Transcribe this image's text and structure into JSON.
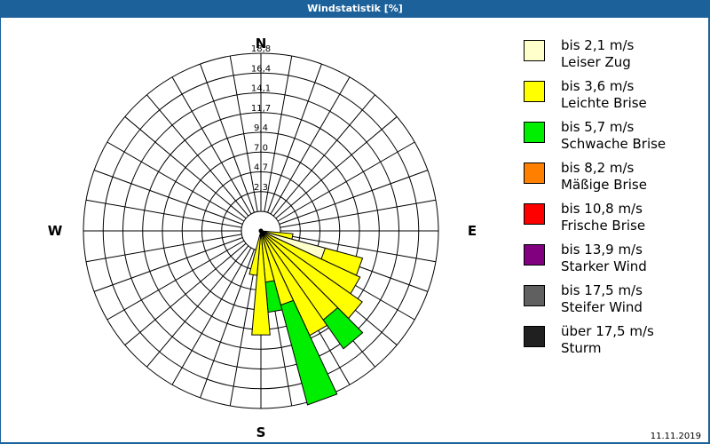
{
  "window": {
    "title": "Windstatistik [%]"
  },
  "footer": {
    "date": "11.11.2019"
  },
  "directions": {
    "n": "N",
    "e": "E",
    "s": "S",
    "w": "W"
  },
  "rings": [
    "2,3",
    "4,7",
    "7,0",
    "9,4",
    "11,7",
    "14,1",
    "16,4",
    "18,8"
  ],
  "legend": [
    {
      "range": "bis 2,1 m/s",
      "name": "Leiser Zug",
      "color": "#ffffcc"
    },
    {
      "range": "bis 3,6 m/s",
      "name": "Leichte Brise",
      "color": "#ffff00"
    },
    {
      "range": "bis 5,7 m/s",
      "name": "Schwache Brise",
      "color": "#00ee00"
    },
    {
      "range": "bis 8,2 m/s",
      "name": "Mäßige Brise",
      "color": "#ff8000"
    },
    {
      "range": "bis 10,8 m/s",
      "name": "Frische Brise",
      "color": "#ff0000"
    },
    {
      "range": "bis 13,9 m/s",
      "name": "Starker Wind",
      "color": "#800080"
    },
    {
      "range": "bis 17,5 m/s",
      "name": "Steifer Wind",
      "color": "#606060"
    },
    {
      "range": "über 17,5 m/s",
      "name": "Sturm",
      "color": "#202020"
    }
  ],
  "chart_data": {
    "type": "wind-rose",
    "title": "Windstatistik [%]",
    "unit": "%",
    "radial_ticks": [
      2.3,
      4.7,
      7.0,
      9.4,
      11.7,
      14.1,
      16.4,
      18.8
    ],
    "rmax": 18.8,
    "sector_width_deg": 10,
    "series_names": [
      "bis 2,1 m/s",
      "bis 3,6 m/s",
      "bis 5,7 m/s",
      "bis 8,2 m/s",
      "bis 10,8 m/s",
      "bis 13,9 m/s",
      "bis 17,5 m/s",
      "über 17,5 m/s"
    ],
    "sectors": [
      {
        "dir": 100,
        "cumulative": [
          0.0,
          1.5,
          1.5
        ]
      },
      {
        "dir": 110,
        "cumulative": [
          5.6,
          10.2,
          10.2
        ]
      },
      {
        "dir": 120,
        "cumulative": [
          0.0,
          10.7,
          10.7
        ]
      },
      {
        "dir": 130,
        "cumulative": [
          0.0,
          12.4,
          12.4
        ]
      },
      {
        "dir": 140,
        "cumulative": [
          0.0,
          10.6,
          14.8
        ]
      },
      {
        "dir": 150,
        "cumulative": [
          0.0,
          11.4,
          11.4
        ]
      },
      {
        "dir": 160,
        "cumulative": [
          0.0,
          6.8,
          19.1
        ]
      },
      {
        "dir": 170,
        "cumulative": [
          0.0,
          3.8,
          7.4
        ]
      },
      {
        "dir": 180,
        "cumulative": [
          0.0,
          10.1,
          10.1
        ]
      },
      {
        "dir": 190,
        "cumulative": [
          0.0,
          3.0,
          3.0
        ]
      }
    ]
  }
}
